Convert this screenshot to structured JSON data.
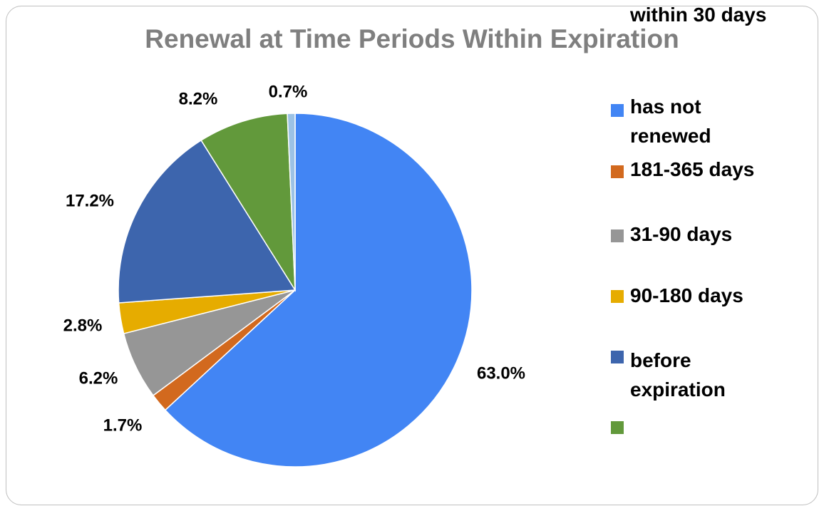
{
  "chart_data": {
    "type": "pie",
    "title": "Renewal at Time Periods Within Expiration",
    "categories": [
      "has not renewed",
      "181-365 days",
      "31-90 days",
      "90-180 days",
      "before expiration",
      "within 30 days",
      ""
    ],
    "values": [
      63.0,
      1.7,
      6.2,
      2.8,
      17.2,
      8.2,
      0.7
    ],
    "labels": [
      "63.0%",
      "1.7%",
      "6.2%",
      "2.8%",
      "17.2%",
      "8.2%",
      "0.7%"
    ],
    "colors": [
      "#4285f4",
      "#d2691e",
      "#969696",
      "#e6ac00",
      "#3d65ad",
      "#62993b",
      "#9cc2e5"
    ],
    "legend": [
      {
        "label": "has not\nrenewed",
        "color": "#4285f4"
      },
      {
        "label": "181-365 days",
        "color": "#d2691e"
      },
      {
        "label": "31-90 days",
        "color": "#969696"
      },
      {
        "label": "90-180 days",
        "color": "#e6ac00"
      },
      {
        "label": "before\nexpiration",
        "color": "#3d65ad"
      },
      {
        "label": "within 30 days",
        "color": "#62993b"
      }
    ],
    "legend_position": "right",
    "start": "top",
    "direction": "clockwise"
  }
}
